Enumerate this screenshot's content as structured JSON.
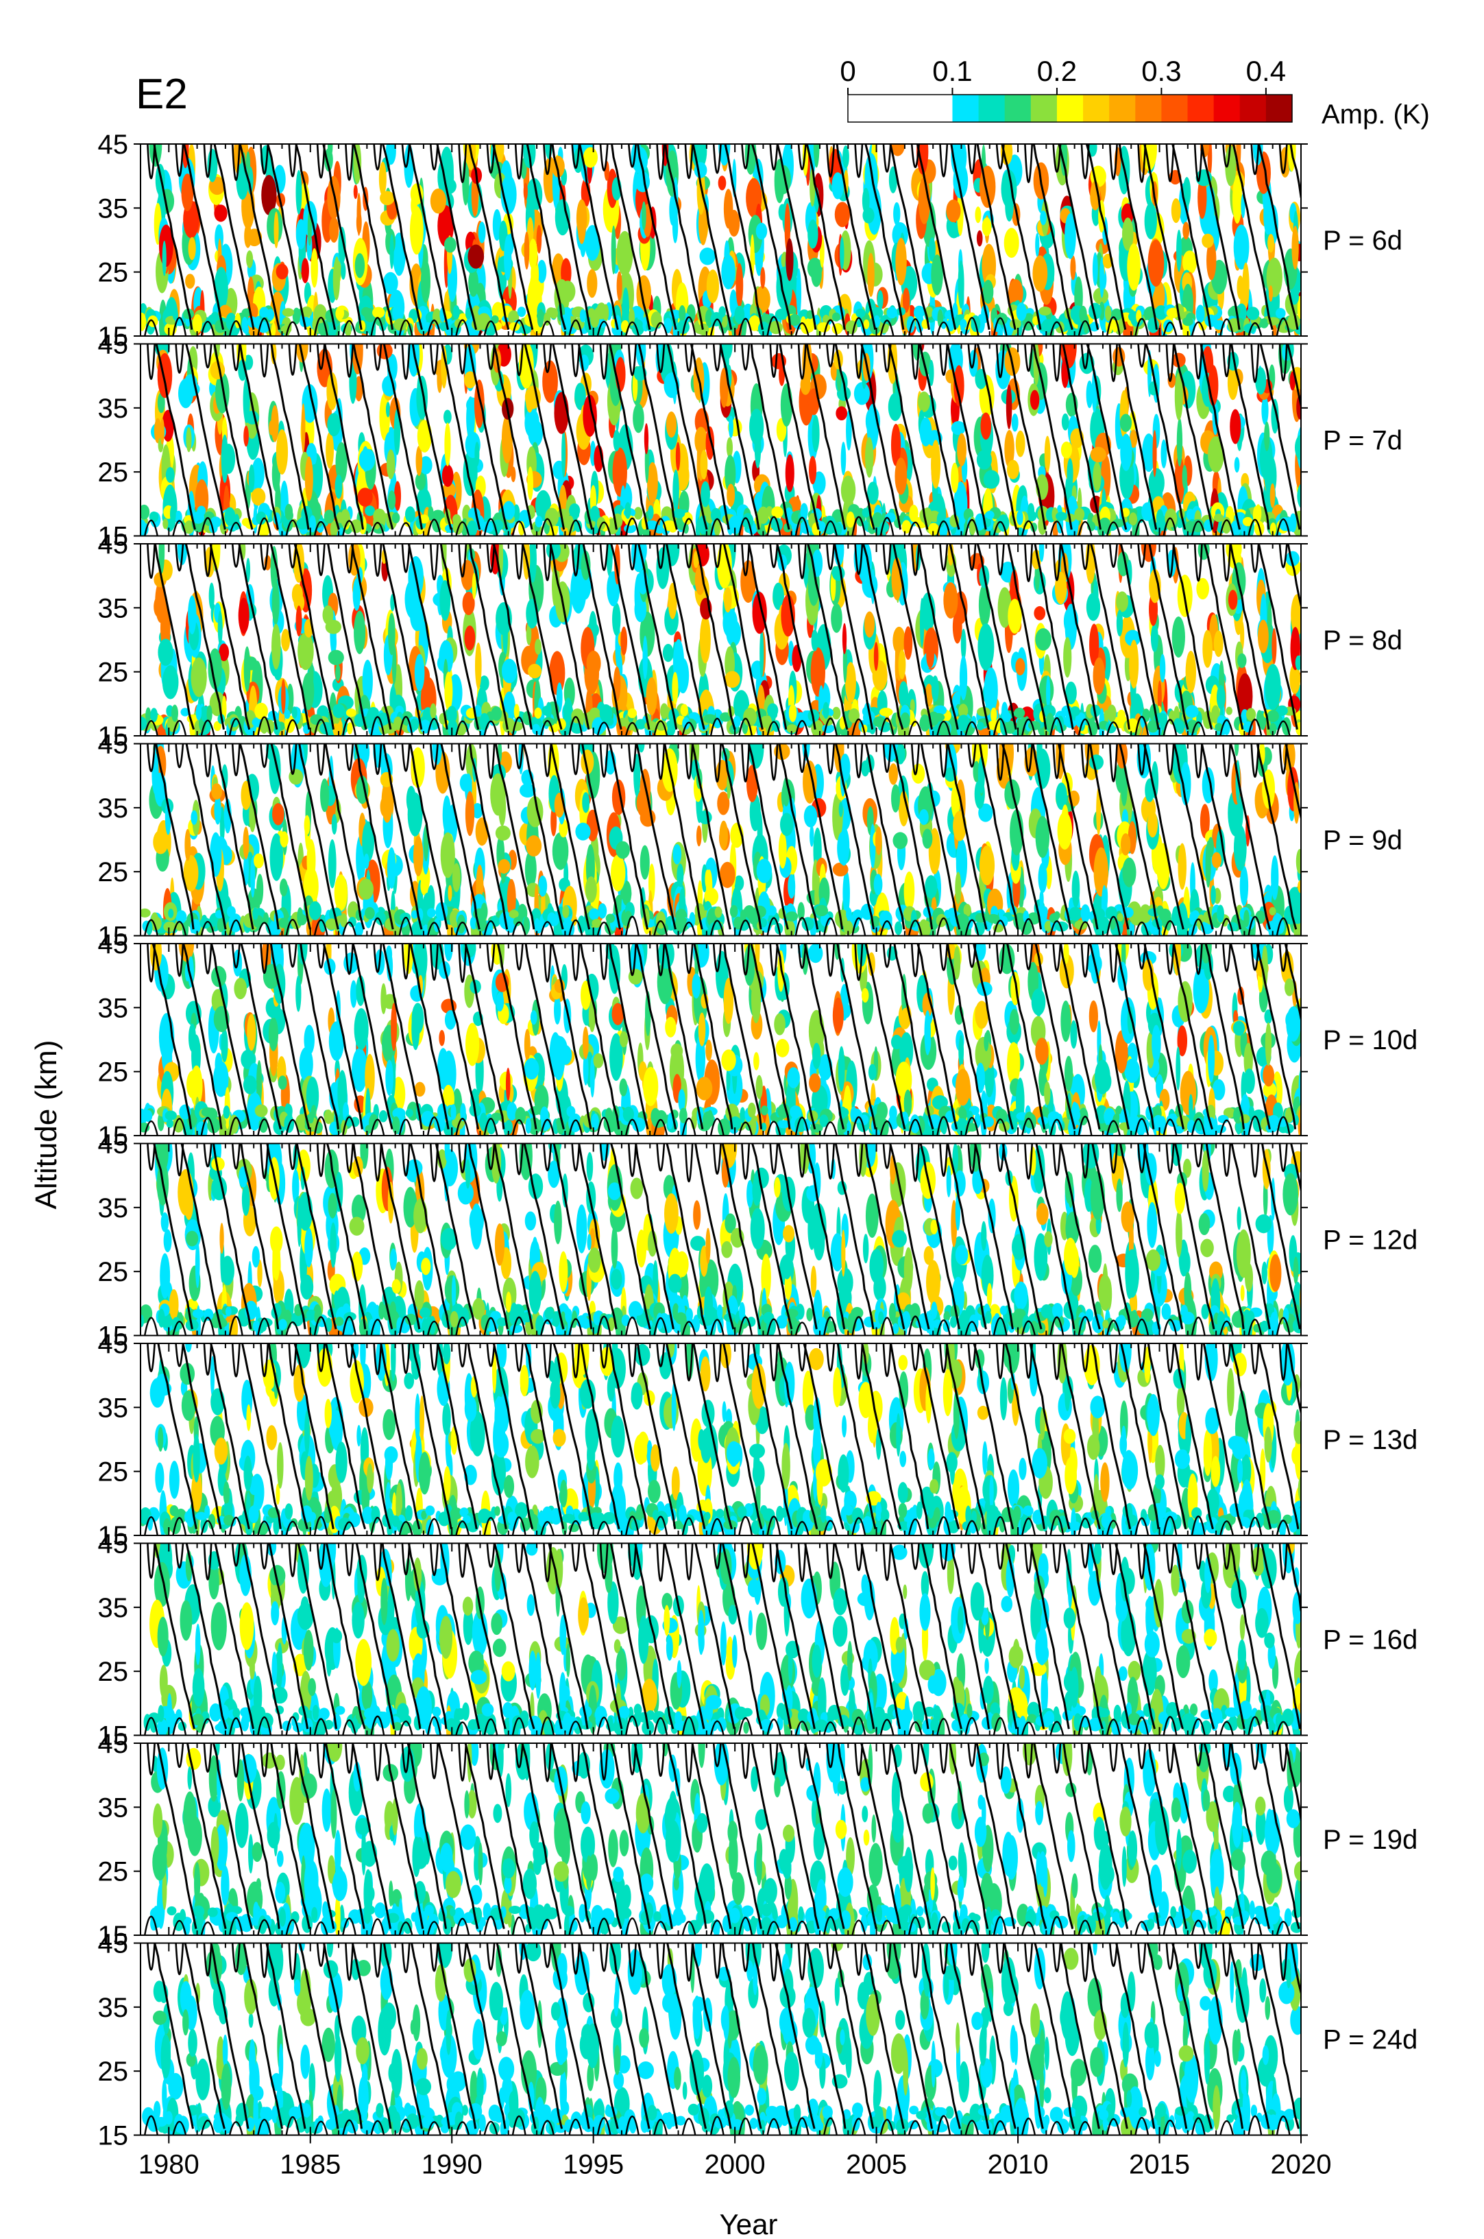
{
  "figure_label": "E2",
  "colorbar": {
    "label": "Amp. (K)",
    "ticks": [
      "0",
      "0.1",
      "0.2",
      "0.3",
      "0.4"
    ],
    "tick_values": [
      0,
      0.1,
      0.2,
      0.3,
      0.4
    ],
    "levels": [
      0,
      0.1,
      0.125,
      0.15,
      0.175,
      0.2,
      0.225,
      0.25,
      0.275,
      0.3,
      0.325,
      0.35,
      0.375,
      0.4,
      0.425
    ],
    "colors": [
      "#ffffff",
      "#00e5ff",
      "#00e0c0",
      "#26d97a",
      "#8be03c",
      "#ffff00",
      "#ffd000",
      "#ffaa00",
      "#ff7f00",
      "#ff5500",
      "#ff2a00",
      "#ee0000",
      "#c80000",
      "#a00000"
    ]
  },
  "chart_data": {
    "type": "heatmap",
    "xlabel": "Year",
    "ylabel": "Altitude (km)",
    "xlim": [
      1979,
      2020
    ],
    "ylim": [
      15,
      45
    ],
    "x_ticks": [
      1980,
      1985,
      1990,
      1995,
      2000,
      2005,
      2010,
      2015,
      2020
    ],
    "y_ticks": [
      15,
      25,
      35,
      45
    ],
    "panels": [
      {
        "label": "P = 6d",
        "intensity": 1.0
      },
      {
        "label": "P = 7d",
        "intensity": 1.0
      },
      {
        "label": "P = 8d",
        "intensity": 0.95
      },
      {
        "label": "P = 9d",
        "intensity": 0.8
      },
      {
        "label": "P = 10d",
        "intensity": 0.75
      },
      {
        "label": "P = 12d",
        "intensity": 0.65
      },
      {
        "label": "P = 13d",
        "intensity": 0.55
      },
      {
        "label": "P = 16d",
        "intensity": 0.45
      },
      {
        "label": "P = 19d",
        "intensity": 0.38
      },
      {
        "label": "P = 24d",
        "intensity": 0.32
      }
    ]
  }
}
